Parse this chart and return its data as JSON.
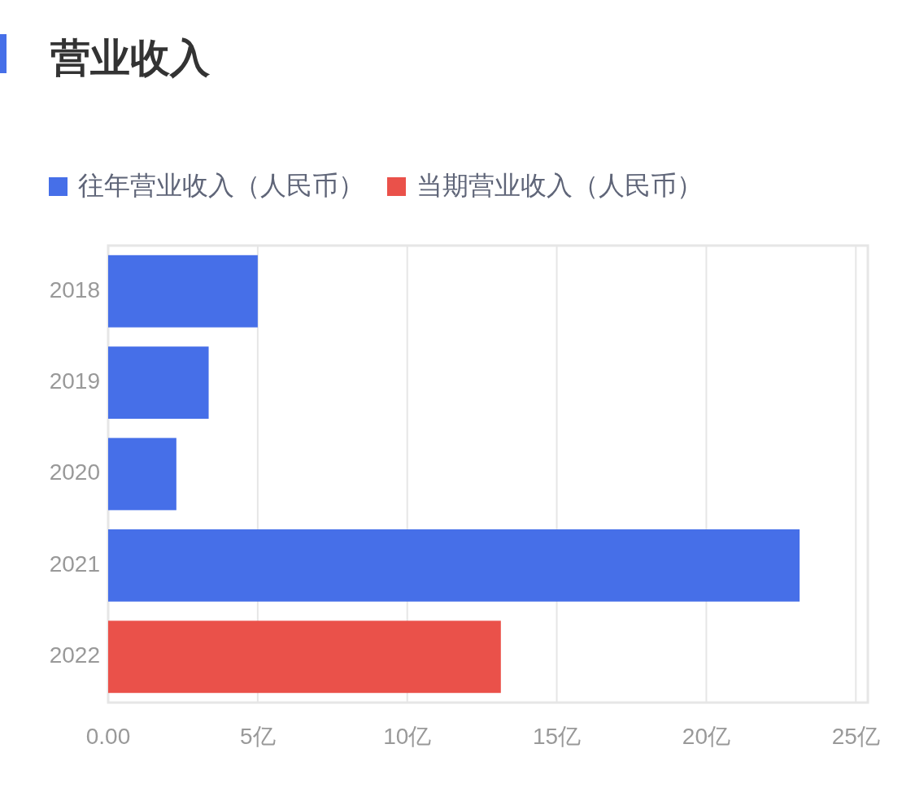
{
  "chart_data": {
    "type": "bar",
    "orientation": "horizontal",
    "stacked": true,
    "title": "营业收入",
    "categories": [
      "2018",
      "2019",
      "2020",
      "2021",
      "2022"
    ],
    "series": [
      {
        "name": "往年营业收入（人民币）",
        "color": "#466fe8",
        "values": [
          5.0,
          3.36,
          2.28,
          23.12,
          null
        ]
      },
      {
        "name": "当期营业收入（人民币）",
        "color": "#ea514a",
        "values": [
          null,
          null,
          null,
          null,
          13.13
        ]
      }
    ],
    "xlim": [
      0,
      25.4
    ],
    "xticks": [
      {
        "value": 0,
        "label": "0.00"
      },
      {
        "value": 5,
        "label": "5亿"
      },
      {
        "value": 10,
        "label": "10亿"
      },
      {
        "value": 15,
        "label": "15亿"
      },
      {
        "value": 20,
        "label": "20亿"
      },
      {
        "value": 25,
        "label": "25亿"
      }
    ],
    "grid": "x",
    "legend": "top left"
  }
}
